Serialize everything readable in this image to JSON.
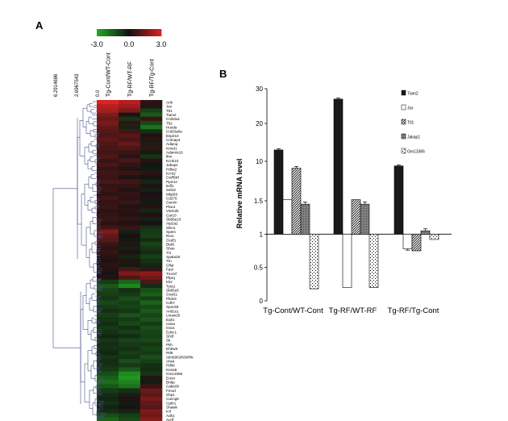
{
  "panels": {
    "a": "A",
    "b": "B"
  },
  "chart_data": [
    {
      "type": "heatmap",
      "panel": "A",
      "colorbar": {
        "ticks": [
          "-3.0",
          "0.0",
          "3.0"
        ],
        "low_color": "#22aa22",
        "mid_color": "#111111",
        "high_color": "#dd2222"
      },
      "dendrogram_axis_ticks": [
        "6.2914686",
        "2.6967543",
        "0.0"
      ],
      "columns": [
        "Tg-Cont/WT-Cont",
        "Tg-RF/WT-RF",
        "Tg-RF/Tg-Cont"
      ],
      "rows": [
        "Ank",
        "Jsx",
        "Ttl1",
        "Tiam2",
        "Col20a1",
        "Tlt2",
        "Hoxda",
        "Col20a8a",
        "Esp210",
        "Cntnap4",
        "Adipoq",
        "Krmd1",
        "Adamts16",
        "Iltm",
        "Kcnk10",
        "Jakap1",
        "Pdha2",
        "Kcnt2",
        "Cw/f5trf",
        "Ppm1c",
        "Edf1",
        "Ssf18",
        "Mbp56",
        "Cd276",
        "Gemin",
        "Plac4",
        "Vstm2b",
        "Car10",
        "Sb58e10",
        "Atp2a2",
        "Skin1",
        "Spem",
        "Rxr1",
        "Ocdf1",
        "Btaf1",
        "Shoe",
        "Tl1",
        "Spata18",
        "Ttn",
        "Cflar",
        "Fasl",
        "Tnxrsf",
        "Pfprq",
        "Irk2",
        "Tyrp1",
        "Sb65e5",
        "Cws31",
        "Pkdc6",
        "Cdh7",
        "Spock8",
        "Arid1s1",
        "Lmaw20",
        "Eqh1",
        "Uaoa",
        "Gsx1",
        "Ednc1",
        "Sh3f",
        "Sk",
        "Pkh",
        "Ehbw8",
        "Rtl8",
        "Alm6901f630Rik",
        "Ahs4",
        "Pdh6",
        "Kena5",
        "Gm13365",
        "Errs4",
        "Bnbp",
        "Cabe00",
        "Fmod",
        "Shp1",
        "Cacng6",
        "Cpth1",
        "Shawk",
        "Icrl",
        "Adh1",
        "Acrlf"
      ],
      "matrix": [
        [
          3.0,
          2.4,
          0.4
        ],
        [
          2.4,
          2.1,
          0.3
        ],
        [
          2.2,
          1.6,
          -0.9
        ],
        [
          1.6,
          0.2,
          -1.4
        ],
        [
          1.3,
          -0.7,
          0.6
        ],
        [
          1.5,
          0.5,
          -1.1
        ],
        [
          1.2,
          -0.4,
          -1.9
        ],
        [
          1.0,
          0.7,
          -0.6
        ],
        [
          0.9,
          1.0,
          0.2
        ],
        [
          1.1,
          0.8,
          0.4
        ],
        [
          0.9,
          1.3,
          -0.3
        ],
        [
          0.8,
          0.9,
          0.5
        ],
        [
          0.7,
          0.6,
          -0.2
        ],
        [
          0.9,
          0.4,
          -0.7
        ],
        [
          0.6,
          0.8,
          0.3
        ],
        [
          0.8,
          0.5,
          -0.1
        ],
        [
          0.5,
          0.3,
          -0.2
        ],
        [
          0.7,
          0.6,
          0.4
        ],
        [
          0.6,
          0.2,
          0.1
        ],
        [
          0.8,
          0.7,
          -0.4
        ],
        [
          0.5,
          0.5,
          0.2
        ],
        [
          0.6,
          0.3,
          -0.3
        ],
        [
          0.4,
          0.5,
          0.1
        ],
        [
          0.7,
          0.4,
          0.2
        ],
        [
          0.5,
          0.6,
          -0.2
        ],
        [
          0.6,
          0.2,
          0.3
        ],
        [
          0.4,
          0.4,
          -0.4
        ],
        [
          0.5,
          0.3,
          0.2
        ],
        [
          0.6,
          0.5,
          -0.3
        ],
        [
          0.4,
          0.2,
          0.1
        ],
        [
          0.7,
          0.6,
          -0.6
        ],
        [
          1.6,
          -0.3,
          -0.8
        ],
        [
          1.2,
          0.1,
          -0.9
        ],
        [
          1.0,
          -0.2,
          -0.5
        ],
        [
          0.6,
          0.3,
          -1.0
        ],
        [
          0.4,
          -0.3,
          -0.7
        ],
        [
          0.5,
          0.2,
          -0.5
        ],
        [
          0.3,
          -0.4,
          -0.9
        ],
        [
          0.2,
          0.3,
          -0.6
        ],
        [
          0.4,
          -0.2,
          -0.4
        ],
        [
          0.3,
          0.8,
          0.5
        ],
        [
          0.1,
          1.6,
          1.8
        ],
        [
          0.2,
          0.9,
          1.4
        ],
        [
          -0.8,
          -1.6,
          0.9
        ],
        [
          -1.4,
          -2.3,
          -0.5
        ],
        [
          -1.0,
          -0.6,
          -1.2
        ],
        [
          -0.9,
          -0.8,
          -1.5
        ],
        [
          -0.7,
          -1.2,
          -0.9
        ],
        [
          -1.1,
          -0.9,
          -1.6
        ],
        [
          -0.8,
          -1.0,
          -1.1
        ],
        [
          -0.6,
          -0.7,
          -1.4
        ],
        [
          -0.9,
          -1.3,
          -1.0
        ],
        [
          -0.7,
          -0.8,
          -1.3
        ],
        [
          -0.5,
          -1.1,
          -0.8
        ],
        [
          -0.8,
          -0.6,
          -1.2
        ],
        [
          -0.6,
          -0.9,
          -1.0
        ],
        [
          -0.4,
          -0.5,
          -0.9
        ],
        [
          -0.7,
          -1.0,
          -1.1
        ],
        [
          -0.5,
          -0.8,
          -0.7
        ],
        [
          -0.6,
          -0.6,
          -1.0
        ],
        [
          -0.4,
          -0.9,
          -0.8
        ],
        [
          -0.7,
          -0.7,
          -1.2
        ],
        [
          -0.5,
          -1.2,
          -0.9
        ],
        [
          -0.6,
          -0.8,
          -0.6
        ],
        [
          -0.8,
          -1.4,
          -0.5
        ],
        [
          -1.2,
          -2.4,
          -0.7
        ],
        [
          -1.5,
          -2.6,
          0.3
        ],
        [
          -1.8,
          -2.2,
          -0.2
        ],
        [
          -1.4,
          -1.9,
          0.6
        ],
        [
          -0.8,
          -0.6,
          1.3
        ],
        [
          -0.5,
          -0.3,
          1.1
        ],
        [
          -0.4,
          0.2,
          1.5
        ],
        [
          -0.6,
          -0.2,
          1.2
        ],
        [
          -0.3,
          0.1,
          1.0
        ],
        [
          -0.5,
          -0.4,
          1.6
        ],
        [
          -1.2,
          -0.9,
          1.4
        ],
        [
          -1.6,
          -1.1,
          1.7
        ]
      ]
    },
    {
      "type": "bar",
      "panel": "B",
      "ylabel": "Relative mRNA level",
      "y_ticks": [
        "0",
        "0.5",
        "1",
        "1.5",
        "10",
        "20",
        "30"
      ],
      "y_scale": "piecewise: 0-1.5 linear, 1.5-30 compressed",
      "baseline": 1,
      "categories": [
        "Tg-Cont/WT-Cont",
        "Tg-RF/WT-RF",
        "Tg-RF/Tg-Cont"
      ],
      "legend_position": "top-right",
      "series": [
        {
          "name": "Tiam2",
          "pattern": "solid-black",
          "values": [
            13.0,
            27.0,
            9.0
          ],
          "errors": [
            0.3,
            0.3,
            0.2
          ]
        },
        {
          "name": "Jsx",
          "pattern": "white",
          "values": [
            1.75,
            0.2,
            0.78
          ],
          "errors": [
            0.0,
            0.0,
            0.02
          ]
        },
        {
          "name": "Ttl1",
          "pattern": "diagonal-hatch",
          "values": [
            8.5,
            1.75,
            0.75
          ],
          "errors": [
            0.4,
            0.0,
            0.0
          ]
        },
        {
          "name": "Jakap1",
          "pattern": "gray-dots",
          "values": [
            1.45,
            1.45,
            1.05
          ],
          "errors": [
            0.03,
            0.03,
            0.03
          ]
        },
        {
          "name": "Gm13365",
          "pattern": "white-stipple",
          "values": [
            0.18,
            0.2,
            0.92
          ],
          "errors": [
            0.0,
            0.0,
            0.0
          ]
        }
      ]
    }
  ]
}
